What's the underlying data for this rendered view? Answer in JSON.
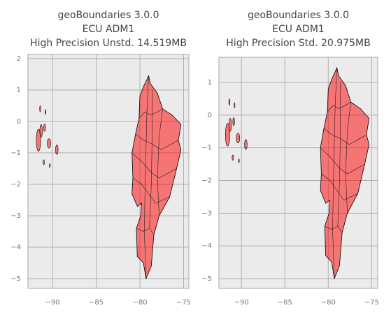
{
  "chart_data": [
    {
      "type": "map",
      "title": [
        "geoBoundaries 3.0.0",
        "ECU ADM1",
        "High Precision Unstd. 14.519MB"
      ],
      "xlim": [
        -92.8,
        -74.4
      ],
      "ylim": [
        -5.31,
        2.13
      ],
      "xticks": [
        {
          "value": -90,
          "label": "−90"
        },
        {
          "value": -85,
          "label": "−85"
        },
        {
          "value": -80,
          "label": "−80"
        },
        {
          "value": -75,
          "label": "−75"
        }
      ],
      "yticks": [
        {
          "value": -5,
          "label": "−5"
        },
        {
          "value": -4,
          "label": "−4"
        },
        {
          "value": -3,
          "label": "−3"
        },
        {
          "value": -2,
          "label": "−2"
        },
        {
          "value": -1,
          "label": "−1"
        },
        0,
        1,
        2
      ],
      "grid": true,
      "color": "#ff0000"
    },
    {
      "type": "map",
      "title": [
        "geoBoundaries 3.0.0",
        "ECU ADM1",
        "High Precision Std. 20.975MB"
      ],
      "xlim": [
        -92.6,
        -74.3
      ],
      "ylim": [
        -5.3,
        1.77
      ],
      "xticks": [
        {
          "value": -90,
          "label": "−90"
        },
        {
          "value": -85,
          "label": "−85"
        },
        {
          "value": -80,
          "label": "−80"
        },
        {
          "value": -75,
          "label": "−75"
        }
      ],
      "yticks": [
        {
          "value": -5,
          "label": "−5"
        },
        {
          "value": -4,
          "label": "−4"
        },
        {
          "value": -3,
          "label": "−3"
        },
        {
          "value": -2,
          "label": "−2"
        },
        {
          "value": -1,
          "label": "−1"
        },
        0,
        1
      ],
      "grid": true,
      "color": "#ff0000"
    }
  ]
}
